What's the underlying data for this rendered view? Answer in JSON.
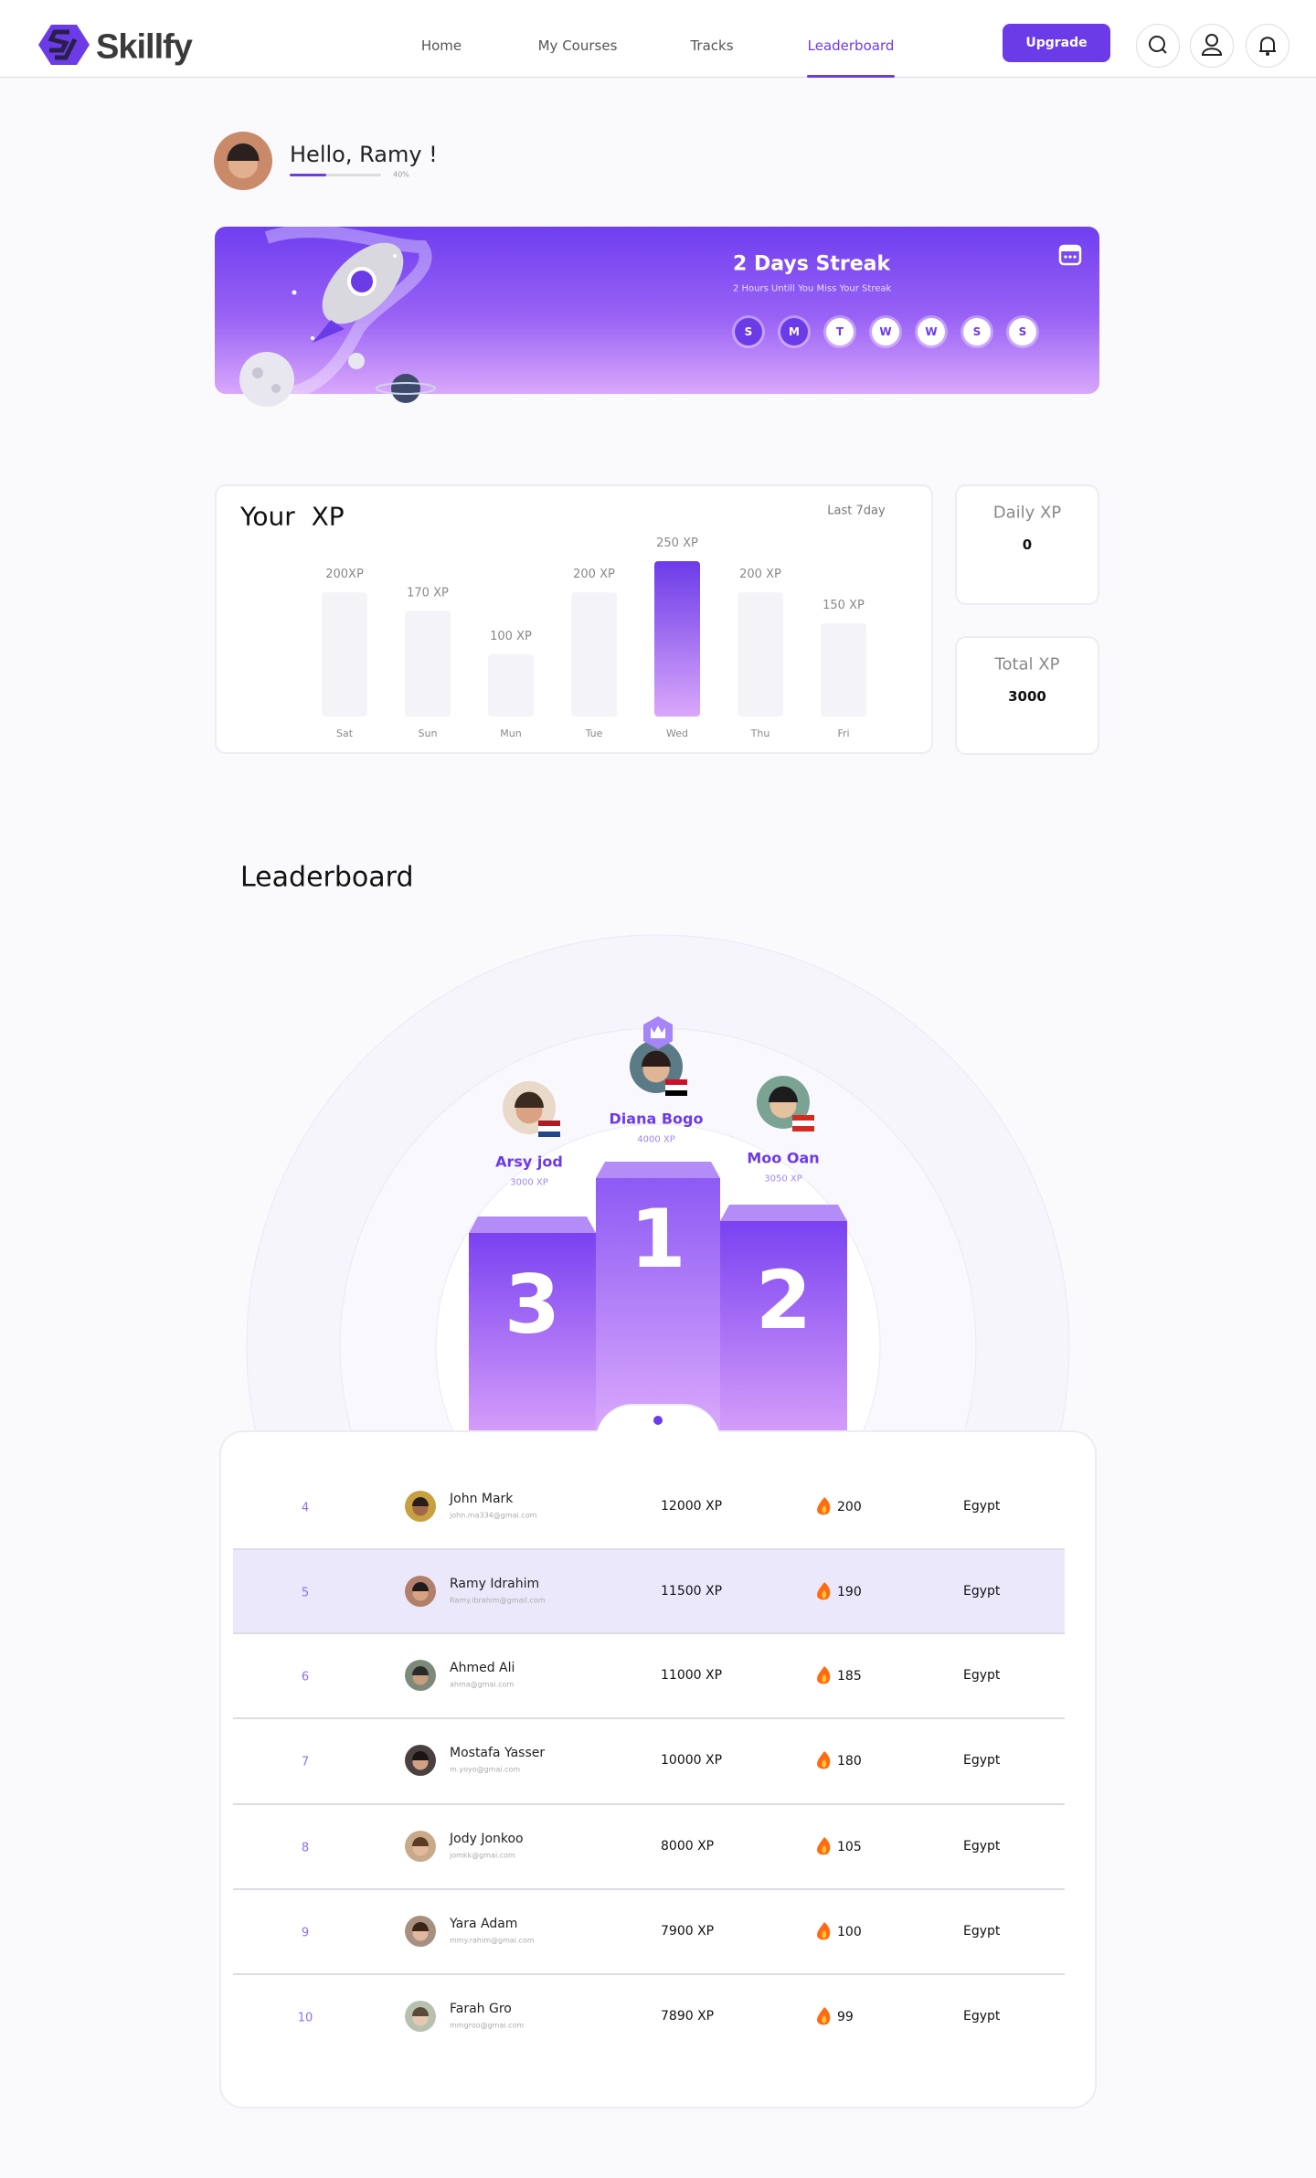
{
  "nav": {
    "logo": "Skillfy",
    "links": [
      "Home",
      "My Courses",
      "Tracks",
      "Leaderboard"
    ],
    "active_link": 3,
    "button": "Upgrade"
  },
  "greeting": {
    "text": "Hello, Ramy !",
    "progress": 40,
    "progress_label": "40%"
  },
  "streak": {
    "title": "2 Days Streak",
    "subtitle": "2 Hours Untill You Miss Your Streak",
    "days": [
      {
        "label": "S",
        "done": true
      },
      {
        "label": "M",
        "done": true
      },
      {
        "label": "T",
        "done": false
      },
      {
        "label": "W",
        "done": false
      },
      {
        "label": "W",
        "done": false
      },
      {
        "label": "S",
        "done": false
      },
      {
        "label": "S",
        "done": false
      }
    ]
  },
  "chart_data": {
    "type": "bar",
    "title": "Your  XP",
    "subtitle": "Last 7day",
    "categories": [
      "Sat",
      "Sun",
      "Mun",
      "Tue",
      "Wed",
      "Thu",
      "Fri"
    ],
    "values": [
      200,
      170,
      100,
      200,
      250,
      200,
      150
    ],
    "value_labels": [
      "200XP",
      "170 XP",
      "100 XP",
      "200 XP",
      "250 XP",
      "200 XP",
      "150 XP"
    ],
    "color": "#f4f4f8",
    "highlight_color": "#6c3be8"
  },
  "stats": [
    {
      "label": "Daily XP",
      "value": 0
    },
    {
      "label": "Total XP",
      "value": 3000
    }
  ],
  "leaderboard": {
    "title": "Leaderboard",
    "podium": [
      {
        "place": 1,
        "name": "Diana Bogo",
        "xp": "4000 XP"
      },
      {
        "place": 2,
        "name": "Moo Oan",
        "xp": "3050 XP"
      },
      {
        "place": 3,
        "name": "Arsy jod",
        "xp": "3000 XP"
      }
    ],
    "highlight_rank": 5,
    "rows": [
      {
        "rank": 4,
        "name": "John Mark",
        "email": "john.ma334@gmai.com",
        "xp": "12000 XP",
        "streak": 200,
        "country": "Egypt"
      },
      {
        "rank": 5,
        "name": "Ramy Idrahim",
        "email": "Ramy.ibrahim@gmail.com",
        "xp": "11500 XP",
        "streak": 190,
        "country": "Egypt"
      },
      {
        "rank": 6,
        "name": "Ahmed Ali",
        "email": "ahma@gmai.com",
        "xp": "11000 XP",
        "streak": 185,
        "country": "Egypt"
      },
      {
        "rank": 7,
        "name": "Mostafa Yasser",
        "email": "m.yoyo@gmai.com",
        "xp": "10000 XP",
        "streak": 180,
        "country": "Egypt"
      },
      {
        "rank": 8,
        "name": "Jody Jonkoo",
        "email": "jomkk@gmai.com",
        "xp": "8000 XP",
        "streak": 105,
        "country": "Egypt"
      },
      {
        "rank": 9,
        "name": "Yara Adam",
        "email": "mmy.rahim@gmai.com",
        "xp": "7900 XP",
        "streak": 100,
        "country": "Egypt"
      },
      {
        "rank": 10,
        "name": "Farah Gro",
        "email": "mmgroo@gmai.com",
        "xp": "7890 XP",
        "streak": 99,
        "country": "Egypt"
      }
    ]
  }
}
